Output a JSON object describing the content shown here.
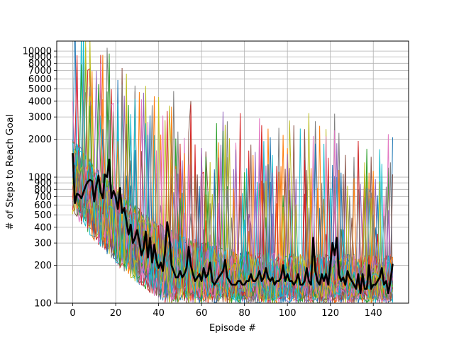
{
  "chart_data": {
    "type": "line",
    "title": "",
    "xlabel": "Episode #",
    "ylabel": "# of Steps to Reach Goal",
    "y_scale": "log",
    "xlim": [
      -7.45,
      156.45
    ],
    "ylim": [
      100,
      12000
    ],
    "grid": true,
    "x_ticks": [
      0,
      20,
      40,
      60,
      80,
      100,
      120,
      140
    ],
    "x_tick_labels": [
      "0",
      "20",
      "40",
      "60",
      "80",
      "100",
      "120",
      "140"
    ],
    "y_ticks": [
      100,
      200,
      300,
      400,
      500,
      600,
      700,
      800,
      900,
      1000,
      2000,
      3000,
      4000,
      5000,
      6000,
      7000,
      8000,
      9000,
      10000
    ],
    "y_tick_labels": [
      "100",
      "200",
      "300",
      "400",
      "500",
      "600",
      "700",
      "800",
      "900",
      "1000",
      "2000",
      "3000",
      "4000",
      "5000",
      "6000",
      "7000",
      "8000",
      "9000",
      "10000"
    ],
    "n_episodes": 150,
    "background_run_colors": [
      "#1f77b4",
      "#ff7f0e",
      "#2ca02c",
      "#d62728",
      "#9467bd",
      "#8c564b",
      "#e377c2",
      "#7f7f7f",
      "#bcbd22",
      "#17becf"
    ],
    "background_run_count": 50,
    "mean_series_color": "#000000",
    "series": [
      {
        "values": [
          1550,
          620,
          740,
          720,
          680,
          760,
          850,
          920,
          950,
          930,
          640,
          850,
          1030,
          760,
          680,
          1050,
          1000,
          1380,
          680,
          780,
          700,
          560,
          820,
          520,
          570,
          450,
          350,
          420,
          300,
          330,
          380,
          310,
          240,
          270,
          370,
          230,
          330,
          210,
          290,
          220,
          190,
          210,
          180,
          260,
          440,
          340,
          200,
          180,
          160,
          160,
          180,
          160,
          170,
          190,
          280,
          200,
          170,
          150,
          160,
          170,
          150,
          190,
          160,
          170,
          210,
          150,
          140,
          150,
          160,
          170,
          180,
          220,
          160,
          150,
          140,
          140,
          140,
          150,
          150,
          140,
          140,
          150,
          150,
          170,
          150,
          150,
          160,
          180,
          150,
          160,
          190,
          160,
          150,
          160,
          140,
          150,
          150,
          160,
          200,
          150,
          170,
          150,
          150,
          140,
          150,
          170,
          140,
          140,
          150,
          190,
          150,
          140,
          330,
          180,
          150,
          140,
          170,
          150,
          170,
          140,
          200,
          300,
          240,
          330,
          170,
          150,
          160,
          140,
          180,
          160,
          150,
          140,
          130,
          170,
          120,
          170,
          130,
          130,
          200,
          130,
          140,
          140,
          150,
          160,
          190,
          140,
          150,
          120,
          150,
          205
        ]
      }
    ]
  }
}
